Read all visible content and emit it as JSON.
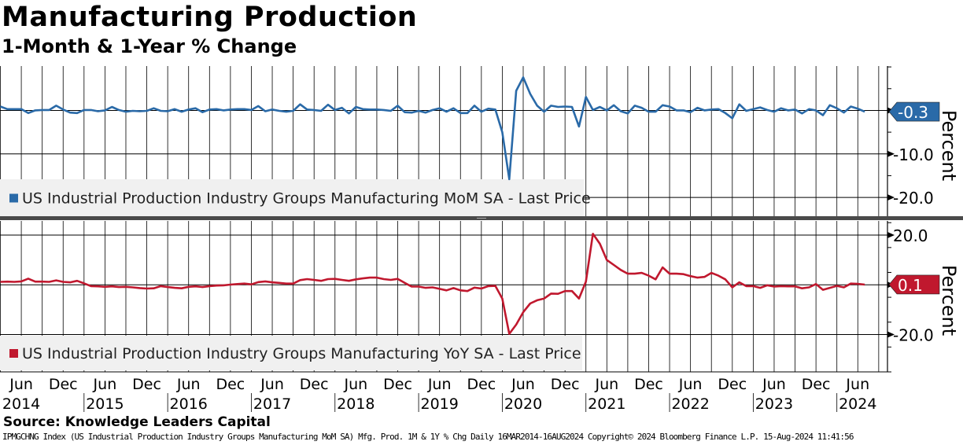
{
  "title": "Manufacturing Production",
  "subtitle": "1-Month & 1-Year % Change",
  "source": "Source: Knowledge Leaders Capital",
  "footer": "IPMGCHNG Index (US Industrial Production Industry Groups Manufacturing MoM SA) Mfg. Prod. 1M & 1Y % Chg  Daily 16MAR2014-16AUG2024  Copyright© 2024 Bloomberg Finance L.P.  15-Aug-2024 11:41:56",
  "chart_data": [
    {
      "type": "line",
      "title": "US Industrial Production Industry Groups Manufacturing MoM SA - Last Price",
      "legend": "US Industrial Production Industry Groups Manufacturing MoM SA - Last Price",
      "ylabel": "Percent",
      "ylim": [
        -24.5,
        10.2
      ],
      "yticks": [
        0,
        -10,
        -20
      ],
      "ytick_labels": [
        "",
        "-10.0",
        "-20.0"
      ],
      "last_value_label": "-0.3",
      "color": "#2a6aa8",
      "start": "2014-03",
      "frequency": "monthly",
      "values": [
        0.9,
        0.3,
        0.3,
        0.3,
        -0.6,
        0.0,
        0.1,
        0.1,
        1.1,
        0.2,
        -0.5,
        -0.6,
        0.1,
        0.1,
        -0.2,
        0.0,
        0.8,
        0.1,
        -0.3,
        -0.1,
        -0.2,
        -0.1,
        0.5,
        -0.1,
        -0.2,
        0.3,
        -0.3,
        0.2,
        0.5,
        -0.4,
        0.2,
        0.3,
        0.0,
        0.2,
        0.3,
        0.3,
        0.1,
        1.0,
        -0.2,
        0.2,
        -0.1,
        -0.3,
        -0.1,
        1.4,
        0.2,
        0.1,
        -0.1,
        1.3,
        0.1,
        0.6,
        -0.7,
        0.8,
        0.3,
        0.2,
        0.2,
        0.1,
        -0.1,
        1.1,
        -0.4,
        -0.5,
        -0.1,
        -0.5,
        0.1,
        0.5,
        -0.3,
        0.5,
        -0.6,
        -0.6,
        1.1,
        -0.3,
        0.4,
        0.2,
        -5.0,
        -15.8,
        4.5,
        7.6,
        3.8,
        1.1,
        -0.3,
        1.1,
        0.8,
        0.9,
        0.8,
        -3.7,
        3.1,
        0.1,
        0.8,
        0.0,
        1.2,
        -0.2,
        -0.7,
        1.1,
        0.6,
        -0.3,
        -0.3,
        1.2,
        0.9,
        0.0,
        0.0,
        -0.4,
        0.6,
        0.0,
        0.2,
        0.3,
        -0.6,
        -1.8,
        1.4,
        -0.1,
        0.3,
        0.7,
        0.1,
        -0.3,
        0.5,
        0.0,
        0.2,
        -0.7,
        0.3,
        0.0,
        -1.1,
        1.2,
        0.5,
        -0.5,
        0.9,
        0.4,
        -0.3
      ]
    },
    {
      "type": "line",
      "title": "US Industrial Production Industry Groups Manufacturing YoY SA - Last Price",
      "legend": "US Industrial Production Industry Groups Manufacturing YoY SA - Last Price",
      "ylabel": "Percent",
      "ylim": [
        -35,
        25.7
      ],
      "yticks": [
        20,
        0,
        -20
      ],
      "ytick_labels": [
        "20.0",
        "",
        "-20.0"
      ],
      "last_value_label": "0.1",
      "color": "#c0182e",
      "start": "2014-03",
      "frequency": "monthly",
      "values": [
        1.2,
        1.3,
        1.2,
        1.4,
        2.5,
        1.3,
        1.3,
        1.2,
        1.8,
        1.2,
        1.0,
        1.6,
        0.6,
        -0.5,
        -0.6,
        -0.8,
        -0.6,
        -0.9,
        -0.8,
        -1.0,
        -1.3,
        -1.5,
        -1.4,
        -0.5,
        -0.9,
        -1.2,
        -1.4,
        -0.8,
        -0.6,
        -0.9,
        -0.5,
        -0.3,
        -0.2,
        0.1,
        0.3,
        0.5,
        0.2,
        1.1,
        1.4,
        1.0,
        0.8,
        0.5,
        0.5,
        1.9,
        2.3,
        2.0,
        1.6,
        2.3,
        2.4,
        2.0,
        1.6,
        2.2,
        2.6,
        2.9,
        2.9,
        2.3,
        2.0,
        2.4,
        0.8,
        -0.7,
        -0.7,
        -1.2,
        -1.0,
        -1.6,
        -2.2,
        -1.3,
        -2.2,
        -2.5,
        -1.1,
        -1.5,
        -0.5,
        -0.4,
        -5.5,
        -19.7,
        -16.0,
        -11.0,
        -7.5,
        -6.2,
        -5.5,
        -3.5,
        -3.6,
        -2.5,
        -2.5,
        -5.5,
        1.3,
        20.5,
        16.5,
        10.0,
        8.0,
        6.0,
        4.5,
        4.5,
        4.8,
        3.7,
        2.2,
        7.0,
        4.5,
        4.5,
        4.3,
        3.5,
        2.9,
        3.2,
        4.8,
        3.7,
        2.2,
        -1.0,
        1.0,
        -0.5,
        -0.5,
        -1.2,
        -0.2,
        -0.7,
        -0.5,
        -0.6,
        -0.6,
        -1.4,
        -1.0,
        0.3,
        -2.0,
        -1.2,
        -0.4,
        -1.0,
        0.5,
        0.4,
        0.1
      ]
    }
  ],
  "xaxis": {
    "labels": [
      {
        "m": "Jun",
        "y": "2014"
      },
      {
        "m": "Dec",
        "y": ""
      },
      {
        "m": "Jun",
        "y": "2015"
      },
      {
        "m": "Dec",
        "y": ""
      },
      {
        "m": "Jun",
        "y": "2016"
      },
      {
        "m": "Dec",
        "y": ""
      },
      {
        "m": "Jun",
        "y": "2017"
      },
      {
        "m": "Dec",
        "y": ""
      },
      {
        "m": "Jun",
        "y": "2018"
      },
      {
        "m": "Dec",
        "y": ""
      },
      {
        "m": "Jun",
        "y": "2019"
      },
      {
        "m": "Dec",
        "y": ""
      },
      {
        "m": "Jun",
        "y": "2020"
      },
      {
        "m": "Dec",
        "y": ""
      },
      {
        "m": "Jun",
        "y": "2021"
      },
      {
        "m": "Dec",
        "y": ""
      },
      {
        "m": "Jun",
        "y": "2022"
      },
      {
        "m": "Dec",
        "y": ""
      },
      {
        "m": "Jun",
        "y": "2023"
      },
      {
        "m": "Dec",
        "y": ""
      },
      {
        "m": "Jun",
        "y": "2024"
      }
    ]
  }
}
